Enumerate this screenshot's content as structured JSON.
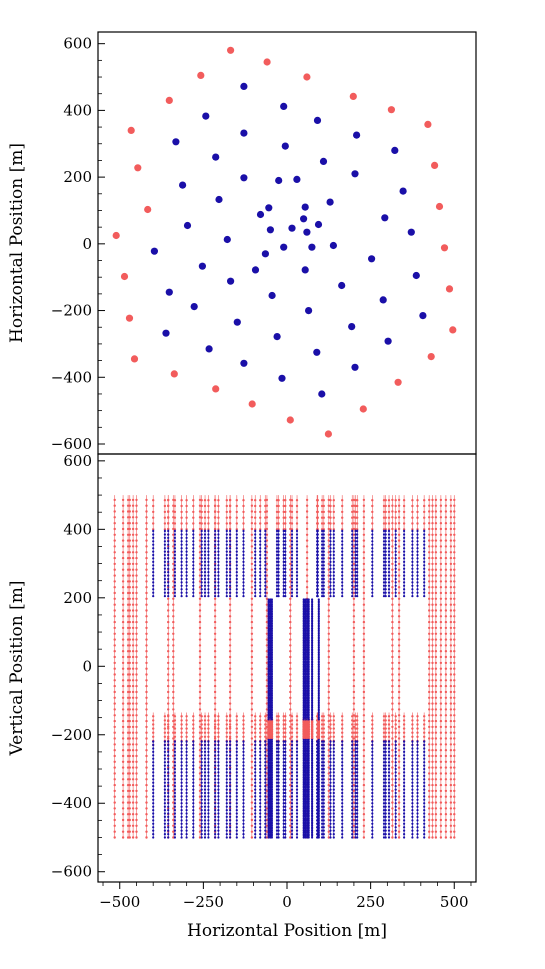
{
  "colors": {
    "blue": "#1a0fa8",
    "red": "#f25c5c",
    "axis": "#000000"
  },
  "chart_data": [
    {
      "type": "scatter",
      "title": "",
      "xlabel": "",
      "ylabel": "Horizontal Position [m]",
      "xlim": [
        -570,
        570
      ],
      "ylim": [
        -630,
        635
      ],
      "yticks": [
        {
          "value": 600,
          "label": "600"
        },
        {
          "value": 400,
          "label": "400"
        },
        {
          "value": 200,
          "label": "200"
        },
        {
          "value": 0,
          "label": "0"
        },
        {
          "value": -200,
          "label": "−200"
        },
        {
          "value": -400,
          "label": "−400"
        },
        {
          "value": -600,
          "label": "−600"
        }
      ],
      "series": [
        {
          "color": "#1a0fa8",
          "points": [
            [
              -130,
              472
            ],
            [
              -10,
              412
            ],
            [
              92,
              370
            ],
            [
              -245,
              383
            ],
            [
              -130,
              332
            ],
            [
              -5,
              293
            ],
            [
              110,
              247
            ],
            [
              210,
              326
            ],
            [
              325,
              280
            ],
            [
              -335,
              306
            ],
            [
              -215,
              260
            ],
            [
              -130,
              198
            ],
            [
              -25,
              190
            ],
            [
              30,
              193
            ],
            [
              205,
              210
            ],
            [
              350,
              158
            ],
            [
              -315,
              176
            ],
            [
              -205,
              133
            ],
            [
              -80,
              88
            ],
            [
              -55,
              108
            ],
            [
              55,
              110
            ],
            [
              130,
              125
            ],
            [
              -400,
              -22
            ],
            [
              -300,
              55
            ],
            [
              -180,
              13
            ],
            [
              -65,
              -30
            ],
            [
              -50,
              42
            ],
            [
              15,
              47
            ],
            [
              50,
              75
            ],
            [
              60,
              35
            ],
            [
              95,
              58
            ],
            [
              75,
              -10
            ],
            [
              -10,
              -10
            ],
            [
              295,
              78
            ],
            [
              375,
              35
            ],
            [
              -255,
              -67
            ],
            [
              -355,
              -145
            ],
            [
              -170,
              -112
            ],
            [
              -95,
              -78
            ],
            [
              55,
              -78
            ],
            [
              140,
              -5
            ],
            [
              255,
              -45
            ],
            [
              -280,
              -188
            ],
            [
              -150,
              -235
            ],
            [
              -45,
              -155
            ],
            [
              65,
              -200
            ],
            [
              165,
              -125
            ],
            [
              195,
              -248
            ],
            [
              290,
              -168
            ],
            [
              390,
              -95
            ],
            [
              410,
              -215
            ],
            [
              -365,
              -268
            ],
            [
              -235,
              -315
            ],
            [
              -130,
              -358
            ],
            [
              -30,
              -278
            ],
            [
              90,
              -325
            ],
            [
              205,
              -370
            ],
            [
              305,
              -292
            ],
            [
              -15,
              -403
            ],
            [
              105,
              -450
            ]
          ]
        },
        {
          "color": "#f25c5c",
          "points": [
            [
              -170,
              580
            ],
            [
              -60,
              545
            ],
            [
              60,
              500
            ],
            [
              -260,
              505
            ],
            [
              -355,
              430
            ],
            [
              -470,
              340
            ],
            [
              -450,
              228
            ],
            [
              -420,
              103
            ],
            [
              -515,
              25
            ],
            [
              -490,
              -98
            ],
            [
              -475,
              -223
            ],
            [
              -460,
              -345
            ],
            [
              -340,
              -390
            ],
            [
              -215,
              -435
            ],
            [
              -105,
              -480
            ],
            [
              10,
              -528
            ],
            [
              125,
              -570
            ],
            [
              230,
              -495
            ],
            [
              335,
              -415
            ],
            [
              435,
              -338
            ],
            [
              500,
              -258
            ],
            [
              490,
              -135
            ],
            [
              475,
              -12
            ],
            [
              460,
              112
            ],
            [
              445,
              235
            ],
            [
              425,
              358
            ],
            [
              315,
              402
            ],
            [
              200,
              442
            ]
          ]
        }
      ]
    },
    {
      "type": "scatter",
      "title": "",
      "xlabel": "Horizontal Position [m]",
      "ylabel": "Vertical Position [m]",
      "xlim": [
        -565,
        565
      ],
      "ylim": [
        -630,
        620
      ],
      "xticks": [
        {
          "value": -500,
          "label": "−500"
        },
        {
          "value": -250,
          "label": "−250"
        },
        {
          "value": 0,
          "label": "0"
        },
        {
          "value": 250,
          "label": "250"
        },
        {
          "value": 500,
          "label": "500"
        }
      ],
      "yticks": [
        {
          "value": 600,
          "label": "600"
        },
        {
          "value": 400,
          "label": "400"
        },
        {
          "value": 200,
          "label": "200"
        },
        {
          "value": 0,
          "label": "0"
        },
        {
          "value": -200,
          "label": "−200"
        },
        {
          "value": -400,
          "label": "−400"
        },
        {
          "value": -600,
          "label": "−600"
        }
      ],
      "red_strings_x": [
        -515,
        -490,
        -475,
        -470,
        -460,
        -450,
        -420,
        -355,
        -340,
        -260,
        -215,
        -170,
        -105,
        -60,
        10,
        60,
        125,
        200,
        230,
        315,
        335,
        425,
        435,
        445,
        460,
        475,
        490,
        500
      ],
      "red_strings_range": [
        -500,
        500
      ],
      "blue_strings_x": [
        -400,
        -365,
        -355,
        -335,
        -315,
        -300,
        -280,
        -255,
        -245,
        -235,
        -215,
        -205,
        -180,
        -170,
        -150,
        -130,
        -95,
        -80,
        -65,
        -30,
        -25,
        -10,
        -5,
        15,
        30,
        90,
        92,
        105,
        110,
        130,
        140,
        165,
        195,
        205,
        210,
        255,
        290,
        295,
        305,
        325,
        350,
        375,
        390,
        410
      ],
      "blue_strings_ranges": [
        [
          205,
          400
        ],
        [
          -500,
          -215
        ]
      ],
      "dense_red_band": [
        -210,
        -155
      ],
      "dense_core_strings_x": [
        -55,
        -50,
        -45,
        50,
        55,
        60,
        65,
        75,
        95
      ],
      "dense_core_ranges": [
        [
          -500,
          -215
        ],
        [
          -155,
          195
        ]
      ]
    }
  ]
}
